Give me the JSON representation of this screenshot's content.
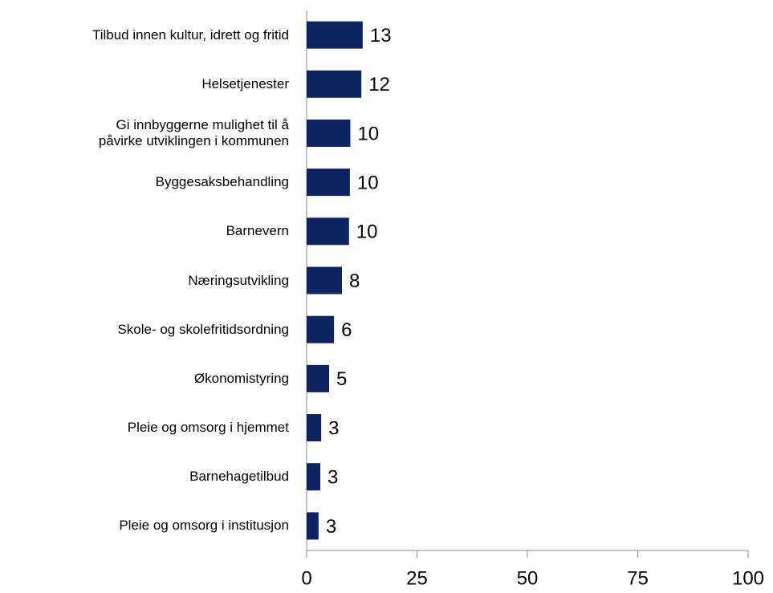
{
  "chart_data": {
    "type": "bar",
    "orientation": "horizontal",
    "categories": [
      "Tilbud innen kultur, idrett og fritid",
      "Helsetjenester",
      "Gi innbyggerne mulighet til å\npåvirke utviklingen i kommunen",
      "Byggesaksbehandling",
      "Barnevern",
      "Næringsutvikling",
      "Skole- og skolefritidsordning",
      "Økonomistyring",
      "Pleie og omsorg i hjemmet",
      "Barnehagetilbud",
      "Pleie og omsorg i institusjon"
    ],
    "values": [
      12.7,
      12.4,
      9.9,
      9.8,
      9.6,
      8.0,
      6.2,
      5.1,
      3.3,
      3.1,
      2.7
    ],
    "value_labels": [
      "13",
      "12",
      "10",
      "10",
      "10",
      "8",
      "6",
      "5",
      "3",
      "3",
      "3"
    ],
    "color": "#0d2461",
    "xlim": [
      0,
      100
    ],
    "xticks": [
      0,
      25,
      50,
      75,
      100
    ]
  }
}
